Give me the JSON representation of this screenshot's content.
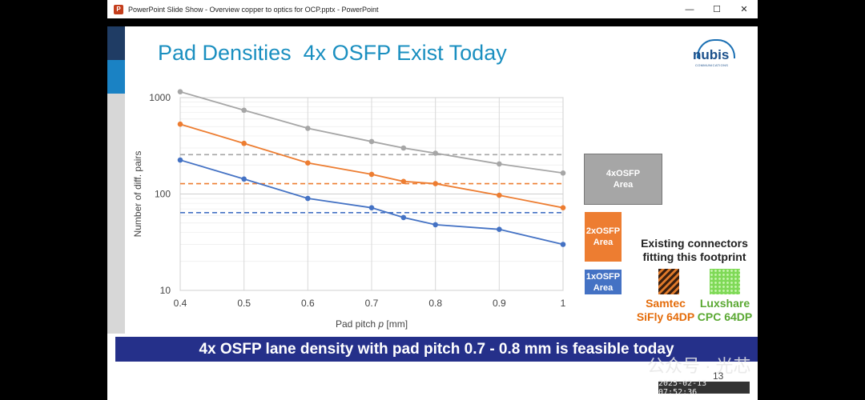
{
  "window": {
    "title": "PowerPoint Slide Show  -  Overview copper to optics for OCP.pptx - PowerPoint",
    "app_icon": "P",
    "controls": {
      "minimize": "—",
      "maximize": "☐",
      "close": "✕"
    }
  },
  "slide": {
    "title": "Pad Densities  4x OSFP Exist Today",
    "logo_text": "nubis",
    "logo_sub": "COMMUNICATIONS",
    "area_boxes": {
      "osfp4": {
        "line1": "4xOSFP",
        "line2": "Area",
        "color": "#a6a6a6"
      },
      "osfp2": {
        "line1": "2xOSFP",
        "line2": "Area",
        "color": "#ed7d31"
      },
      "osfp1": {
        "line1": "1xOSFP",
        "line2": "Area",
        "color": "#4472c4"
      }
    },
    "existing_label_line1": "Existing connectors",
    "existing_label_line2": "fitting this footprint",
    "connectors": [
      {
        "name_line1": "Samtec",
        "name_line2": "SiFly 64DP",
        "color": "#e46c0a"
      },
      {
        "name_line1": "Luxshare",
        "name_line2": "CPC 64DP",
        "color": "#5aa832"
      }
    ],
    "banner": "4x OSFP lane density with pad pitch  0.7 - 0.8 mm is feasible today",
    "page_number": "13"
  },
  "timestamp": "2025-02-13  07:52:36",
  "watermark": "公众号 · 光芯",
  "chart_data": {
    "type": "line",
    "xlabel_prefix": "Pad pitch ",
    "xlabel_var": "p",
    "xlabel_suffix": " [mm]",
    "ylabel": "Number of diff. pairs",
    "yscale": "log",
    "xlim": [
      0.4,
      1.0
    ],
    "ylim": [
      10,
      1000
    ],
    "x_ticks": [
      "0.4",
      "0.5",
      "0.6",
      "0.7",
      "0.8",
      "0.9",
      "1"
    ],
    "y_ticks": [
      "10",
      "100",
      "1000"
    ],
    "grid": true,
    "series": [
      {
        "id": "osfp4",
        "color": "#a6a6a6",
        "x": [
          0.4,
          0.5,
          0.6,
          0.7,
          0.75,
          0.8,
          0.9,
          1.0
        ],
        "y": [
          1150,
          740,
          480,
          350,
          300,
          265,
          205,
          165
        ]
      },
      {
        "id": "osfp2",
        "color": "#ed7d31",
        "x": [
          0.4,
          0.5,
          0.6,
          0.7,
          0.75,
          0.8,
          0.9,
          1.0
        ],
        "y": [
          530,
          335,
          210,
          160,
          135,
          128,
          97,
          72
        ]
      },
      {
        "id": "osfp1",
        "color": "#4472c4",
        "x": [
          0.4,
          0.5,
          0.6,
          0.7,
          0.75,
          0.8,
          0.9,
          1.0
        ],
        "y": [
          225,
          143,
          90,
          72,
          57,
          48,
          43,
          30
        ]
      }
    ],
    "reference_lines": [
      {
        "id": "osfp4",
        "color": "#a6a6a6",
        "y": 256
      },
      {
        "id": "osfp2",
        "color": "#ed7d31",
        "y": 128
      },
      {
        "id": "osfp1",
        "color": "#4472c4",
        "y": 64
      }
    ]
  }
}
